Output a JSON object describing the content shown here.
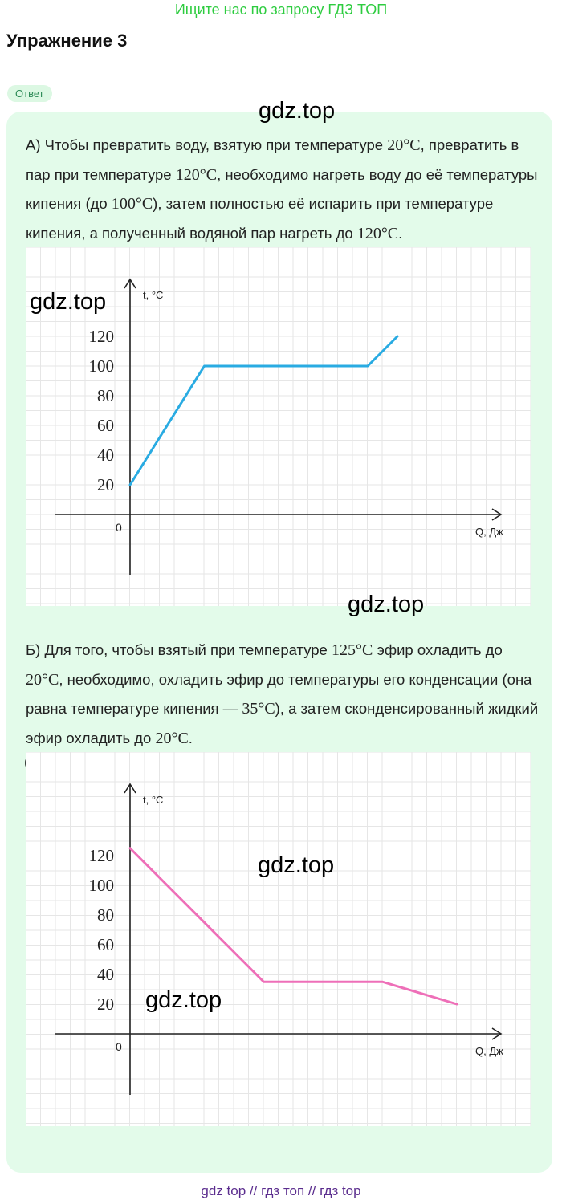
{
  "banner": "Ищите нас по запросу ГДЗ ТОП",
  "title": "Упражнение 3",
  "answer_badge": "Ответ",
  "watermark": "gdz.top",
  "part_a": {
    "t1": "А) Чтобы превратить воду, взятую при температуре ",
    "m1": "20°C",
    "t2": ", превратить в пар при температуре ",
    "m2": "120°C",
    "t3": ", необходимо нагреть воду до её температуры кипения (до ",
    "m3": "100°C",
    "t4": "), затем полностью её испарить при температуре кипения, а полученный водяной пар нагреть до ",
    "m4": "120°C",
    "t5": "."
  },
  "part_b": {
    "t1": "Б) Для того, чтобы взятый при температуре ",
    "m1": "125°C",
    "t2": " эфир охладить до ",
    "m2": "20°C",
    "t3": ", необходимо, охладить эфир до температуры его конденсации (она равна температуре кипения — ",
    "m3": "35°C",
    "t4": "), а затем сконденсированный жидкий эфир охладить до ",
    "m4": "20°C",
    "t5": "."
  },
  "chart_data": [
    {
      "type": "line",
      "title": "",
      "xlabel": "Q, Дж",
      "ylabel": "t, °C",
      "origin_label": "0",
      "yticks": [
        20,
        40,
        60,
        80,
        100,
        120
      ],
      "ylim": [
        0,
        120
      ],
      "grid": true,
      "color": "#29abe2",
      "x": [
        0,
        1,
        3.2,
        3.6
      ],
      "values": [
        20,
        100,
        100,
        120
      ]
    },
    {
      "type": "line",
      "title": "",
      "xlabel": "Q, Дж",
      "ylabel": "t, °C",
      "origin_label": "0",
      "yticks": [
        20,
        40,
        60,
        80,
        100,
        120
      ],
      "ylim": [
        0,
        125
      ],
      "grid": true,
      "color": "#ee6fb8",
      "x": [
        0,
        1.8,
        3.4,
        4.4
      ],
      "values": [
        125,
        35,
        35,
        20
      ]
    }
  ],
  "footer": "gdz top  //  гдз топ  //  гдз top"
}
